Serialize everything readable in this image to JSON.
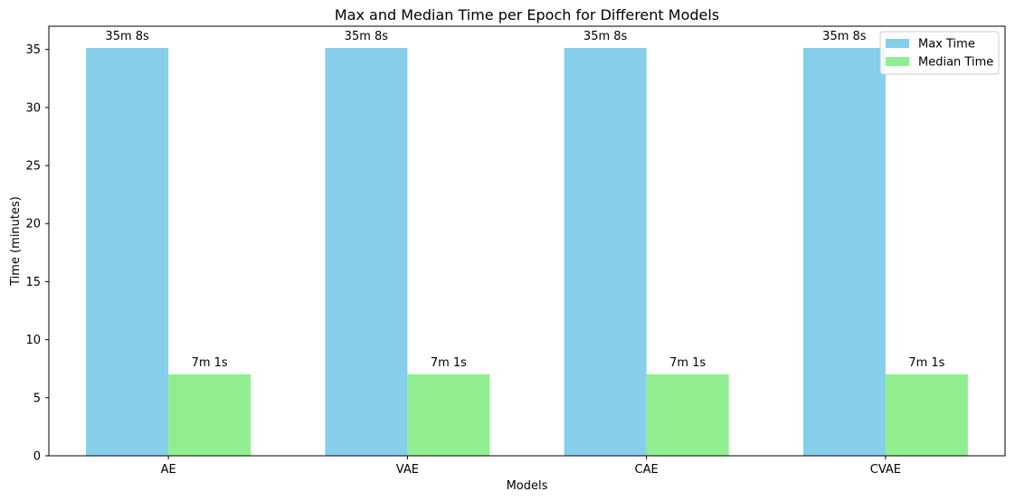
{
  "chart_data": {
    "type": "bar",
    "title": "Max and Median Time per Epoch for Different Models",
    "xlabel": "Models",
    "ylabel": "Time (minutes)",
    "categories": [
      "AE",
      "VAE",
      "CAE",
      "CVAE"
    ],
    "ylim": [
      0,
      37
    ],
    "yticks": [
      0,
      5,
      10,
      15,
      20,
      25,
      30,
      35
    ],
    "grid": false,
    "legend_position": "top-right",
    "series": [
      {
        "name": "Max Time",
        "color": "#87ceeb",
        "values": [
          35.13,
          35.13,
          35.13,
          35.13
        ],
        "labels": [
          "35m 8s",
          "35m 8s",
          "35m 8s",
          "35m 8s"
        ]
      },
      {
        "name": "Median Time",
        "color": "#90ee90",
        "values": [
          7.02,
          7.02,
          7.02,
          7.02
        ],
        "labels": [
          "7m 1s",
          "7m 1s",
          "7m 1s",
          "7m 1s"
        ]
      }
    ]
  }
}
